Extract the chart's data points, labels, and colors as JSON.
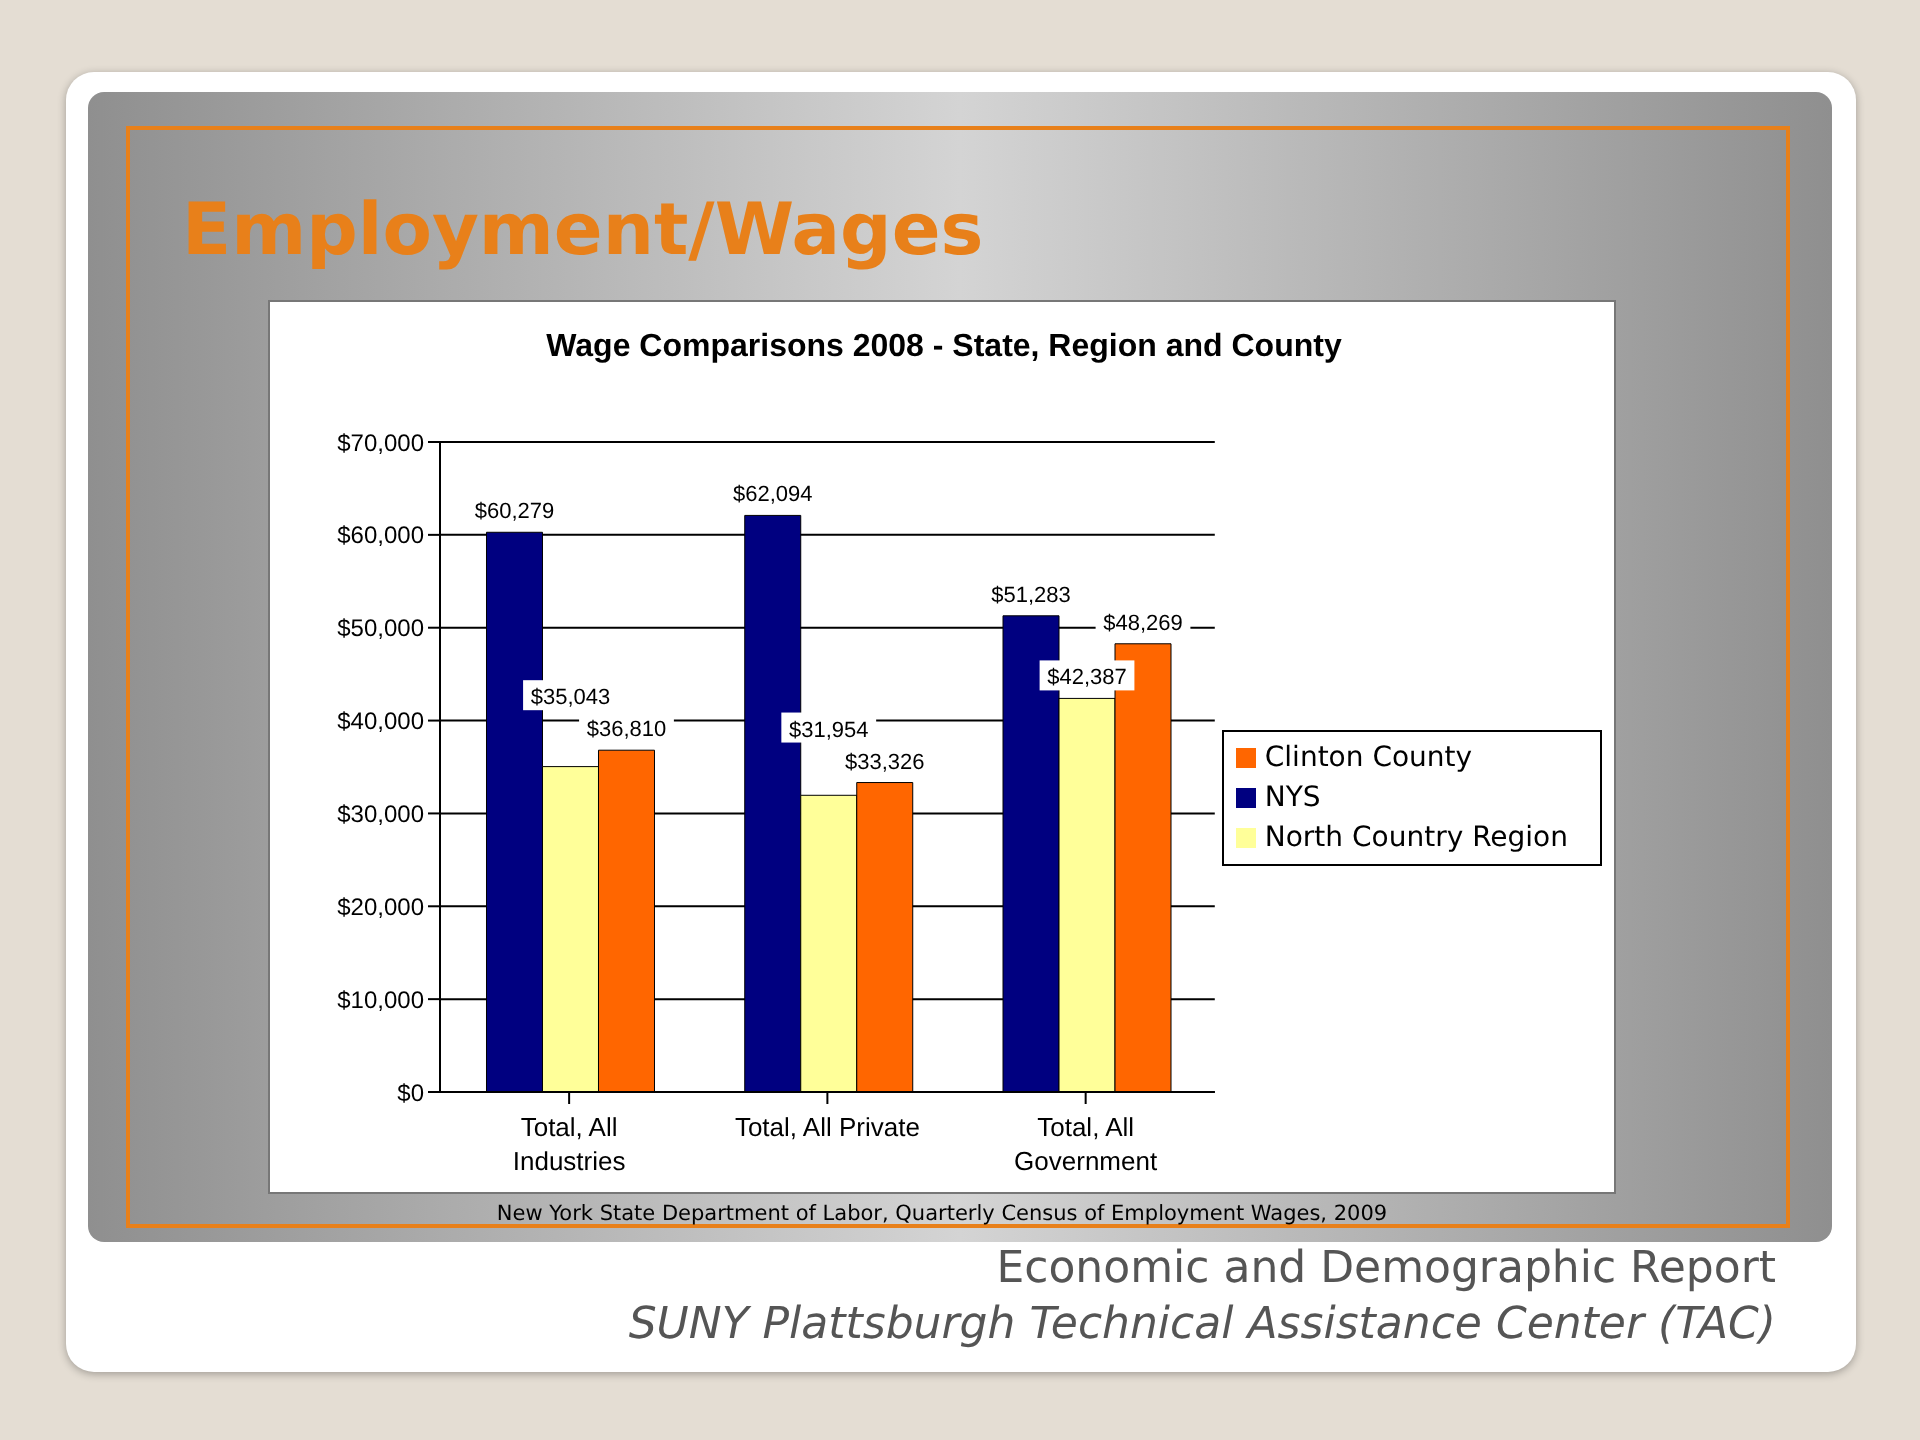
{
  "chart_data": {
    "type": "bar",
    "title": "Employment/Wages",
    "subtitle": "Wage Comparisons 2008 - State, Region and County",
    "categories": [
      "Total, All Industries",
      "Total, All Private",
      "Total, All Government"
    ],
    "series": [
      {
        "name": "NYS",
        "color": "#000080",
        "values": [
          60279,
          62094,
          51283
        ],
        "value_labels": [
          "$60,279",
          "$62,094",
          "$51,283"
        ]
      },
      {
        "name": "North Country Region",
        "color": "#ffff99",
        "values": [
          35043,
          31954,
          42387
        ],
        "value_labels": [
          "$35,043",
          "$31,954",
          "$42,387"
        ]
      },
      {
        "name": "Clinton County",
        "color": "#ff6600",
        "values": [
          36810,
          33326,
          48269
        ],
        "value_labels": [
          "$36,810",
          "$33,326",
          "$48,269"
        ]
      }
    ],
    "ylim": [
      0,
      70000
    ],
    "yticks": [
      {
        "value": 0,
        "label": "$0"
      },
      {
        "value": 10000,
        "label": "$10,000"
      },
      {
        "value": 20000,
        "label": "$20,000"
      },
      {
        "value": 30000,
        "label": "$30,000"
      },
      {
        "value": 40000,
        "label": "$40,000"
      },
      {
        "value": 50000,
        "label": "$50,000"
      },
      {
        "value": 60000,
        "label": "$60,000"
      },
      {
        "value": 70000,
        "label": "$70,000"
      }
    ],
    "grid": "y",
    "legend": "right",
    "annotations": [
      "New York State Department of Labor, Quarterly Census of Employment Wages, 2009",
      "Economic and Demographic Report",
      "SUNY Plattsburgh Technical Assistance Center (TAC)"
    ]
  }
}
